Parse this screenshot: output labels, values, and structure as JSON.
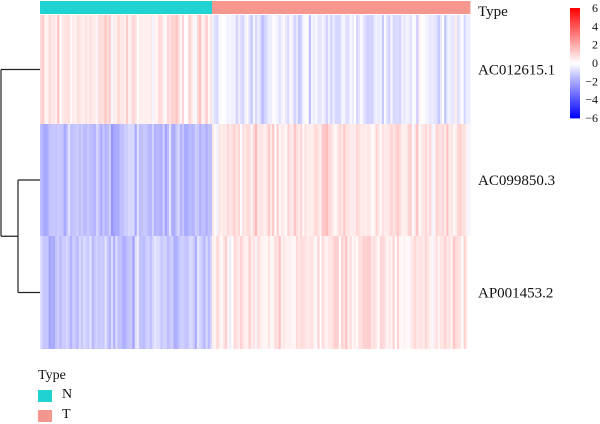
{
  "chart_data": {
    "type": "heatmap",
    "title": "",
    "annotation": {
      "label": "Type",
      "groups": [
        {
          "name": "N",
          "color": "#1fd3d3",
          "count": 80
        },
        {
          "name": "T",
          "color": "#f6978f",
          "count": 120
        }
      ]
    },
    "rows": [
      {
        "name": "AC012615.1",
        "group_means": {
          "N": 0.6,
          "T": -0.5
        }
      },
      {
        "name": "AC099850.3",
        "group_means": {
          "N": -1.5,
          "T": 0.6
        }
      },
      {
        "name": "AP001453.2",
        "group_means": {
          "N": -1.3,
          "T": 0.6
        }
      }
    ],
    "colorbar": {
      "ticks": [
        6,
        4,
        2,
        0,
        -2,
        -4,
        -6
      ],
      "range": [
        -6,
        6
      ],
      "colors": {
        "low": "#0000ff",
        "mid": "#ffffff",
        "high": "#ff0000"
      }
    },
    "dendrogram": "rows clustered: AC099850.3 and AP001453.2 join first, then AC012615.1"
  },
  "legend": {
    "title": "Type",
    "items": [
      {
        "label": "N",
        "color": "#1fd3d3"
      },
      {
        "label": "T",
        "color": "#f6978f"
      }
    ]
  }
}
